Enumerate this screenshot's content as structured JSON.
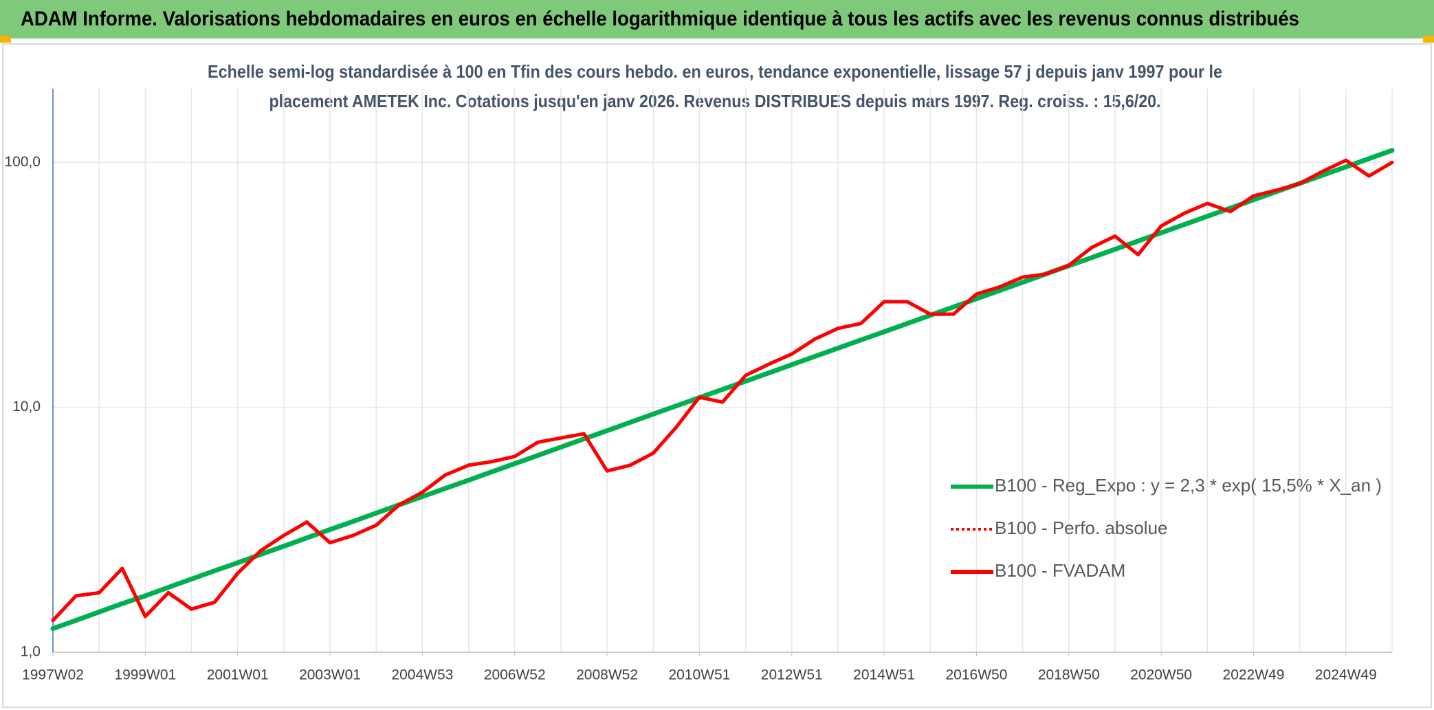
{
  "header": {
    "title": "ADAM Informe. Valorisations hebdomadaires en euros en échelle logarithmique identique à tous les actifs avec les revenus connus distribués"
  },
  "chart_data": {
    "type": "line",
    "subtitle": [
      "Echelle semi-log standardisée à 100 en Tfin des cours hebdo. en euros, tendance exponentielle, lissage 57 j depuis janv 1997 pour le",
      "placement AMETEK Inc. Cotations jusqu'en janv 2026. Revenus DISTRIBUES depuis mars 1997. Reg. croiss. : 15,6/20."
    ],
    "log_scale": true,
    "grid": true,
    "legend_position": "right",
    "ylim": [
      1,
      200
    ],
    "yticks": [
      {
        "value": 1,
        "label": "1,0"
      },
      {
        "value": 10,
        "label": "10,0"
      },
      {
        "value": 100,
        "label": "100,0"
      }
    ],
    "categories": [
      "1997W02",
      null,
      null,
      null,
      "1999W01",
      null,
      null,
      null,
      "2001W01",
      null,
      null,
      null,
      "2003W01",
      null,
      null,
      null,
      "2004W53",
      null,
      null,
      null,
      "2006W52",
      null,
      null,
      null,
      "2008W52",
      null,
      null,
      null,
      "2010W51",
      null,
      null,
      null,
      "2012W51",
      null,
      null,
      null,
      "2014W51",
      null,
      null,
      null,
      "2016W50",
      null,
      null,
      null,
      "2018W50",
      null,
      null,
      null,
      "2020W50",
      null,
      null,
      null,
      "2022W49",
      null,
      null,
      null,
      "2024W49",
      null,
      null
    ],
    "series": [
      {
        "name": "B100 - Reg_Expo : y = 2,3 * exp( 15,5% *  X_an )",
        "color": "#00b050",
        "dash": "solid",
        "values": [
          1.25,
          1.35,
          1.46,
          1.58,
          1.7,
          1.84,
          1.99,
          2.15,
          2.32,
          2.51,
          2.71,
          2.93,
          3.17,
          3.42,
          3.7,
          4.0,
          4.32,
          4.67,
          5.04,
          5.45,
          5.89,
          6.36,
          6.88,
          7.43,
          8.03,
          8.68,
          9.38,
          10.14,
          10.95,
          11.83,
          12.78,
          13.81,
          14.93,
          16.13,
          17.43,
          18.84,
          20.35,
          21.99,
          23.76,
          25.68,
          27.75,
          29.99,
          32.4,
          35.01,
          37.83,
          40.88,
          44.18,
          47.74,
          51.58,
          55.74,
          60.23,
          65.08,
          70.33,
          76.0,
          82.12,
          88.74,
          95.89,
          103.62,
          111.97
        ]
      },
      {
        "name": "B100 - Perfo. absolue",
        "color": "#ff0000",
        "dash": "dotted",
        "values": [
          1.35,
          1.7,
          1.75,
          2.2,
          1.4,
          1.75,
          1.5,
          1.6,
          2.1,
          2.6,
          3.0,
          3.4,
          2.8,
          3.0,
          3.3,
          4.0,
          4.5,
          5.3,
          5.8,
          6.0,
          6.3,
          7.2,
          7.5,
          7.8,
          5.5,
          5.8,
          6.5,
          8.3,
          11.0,
          10.5,
          13.5,
          15.0,
          16.5,
          19,
          21,
          22,
          27,
          27,
          24,
          24,
          29,
          31,
          34,
          35,
          38,
          45,
          50,
          42,
          55,
          62,
          68,
          63,
          73,
          77,
          82,
          92,
          102,
          88,
          100
        ]
      },
      {
        "name": "B100 - FVADAM",
        "color": "#ff0000",
        "dash": "solid",
        "values": [
          1.35,
          1.7,
          1.75,
          2.2,
          1.4,
          1.75,
          1.5,
          1.6,
          2.1,
          2.6,
          3.0,
          3.4,
          2.8,
          3.0,
          3.3,
          4.0,
          4.5,
          5.3,
          5.8,
          6.0,
          6.3,
          7.2,
          7.5,
          7.8,
          5.5,
          5.8,
          6.5,
          8.3,
          11.0,
          10.5,
          13.5,
          15.0,
          16.5,
          19,
          21,
          22,
          27,
          27,
          24,
          24,
          29,
          31,
          34,
          35,
          38,
          45,
          50,
          42,
          55,
          62,
          68,
          63,
          73,
          77,
          82,
          92,
          102,
          88,
          100
        ]
      }
    ]
  }
}
